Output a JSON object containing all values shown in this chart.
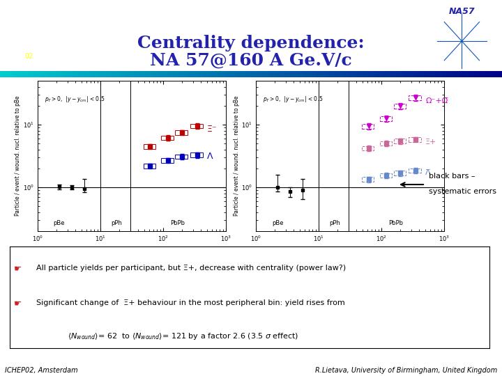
{
  "title_line1": "Centrality dependence:",
  "title_line2": "NA 57@160 A Ge.V/c",
  "title_color": "#2222aa",
  "bg_color": "#ffffff",
  "na57_label": "NA57",
  "footer_left": "ICHEP02, Amsterdam",
  "footer_right": "R.Lietava, University of Birmingham, United Kingdom",
  "arrow_text1": "black bars –",
  "arrow_text2": "systematic errors",
  "bullet1": "All particle yields per participant, but Ξ+, decrease with centrality (power law?)",
  "bullet2": "Significant change of  Ξ+ behaviour in the most peripheral bin: yield rises from",
  "bullet3": "<N_wound>= 62  to <N_wound>= 121 by a factor 2.6 (3.5 σ effect)",
  "plot_ylabel": "Particle / event / wound. nucl. relative to pBe",
  "pt_label": "p_T > 0,  |y-y_cm| < 0.5",
  "lambda_label": "Λ",
  "xi_minus_label": "Ξ⁻",
  "omega_label": "Ω⁻+Ω̅",
  "xi_plus_label": "Ξ+",
  "anti_lambda_label": "Λ̅",
  "color_blue": "#0000bb",
  "color_red": "#bb0000",
  "color_magenta": "#cc00cc",
  "color_pink": "#cc6699",
  "color_light_blue": "#6688cc",
  "xdata_pBe": [
    2.2,
    3.5
  ],
  "xdata_pPh": [
    5.5
  ],
  "xdata_PbPb": [
    62,
    120,
    200,
    350
  ],
  "p1_Lambda_pBe": [
    1.02,
    1.0
  ],
  "p1_Lambda_pPh": [
    0.95
  ],
  "p1_Lambda_PbPb": [
    2.2,
    2.7,
    3.1,
    3.3
  ],
  "p1_Xi_pBe": [
    1.02,
    1.0
  ],
  "p1_Xi_pPh": [
    0.92
  ],
  "p1_Xi_PbPb": [
    4.5,
    6.2,
    7.5,
    9.5
  ],
  "p2_Omega_pBe": [
    1.0,
    0.85
  ],
  "p2_Omega_pPh": [
    0.9
  ],
  "p2_Omega_PbPb": [
    9.5,
    12.5,
    20.0,
    27.0
  ],
  "p2_XiPlus_pBe": [
    1.0,
    0.85
  ],
  "p2_XiPlus_pPh": [
    0.9
  ],
  "p2_XiPlus_PbPb": [
    4.2,
    5.0,
    5.5,
    5.8
  ],
  "p2_AntiL_pBe": [
    1.0,
    0.85
  ],
  "p2_AntiL_pPh": [
    0.9
  ],
  "p2_AntiL_PbPb": [
    1.35,
    1.55,
    1.7,
    1.85
  ]
}
